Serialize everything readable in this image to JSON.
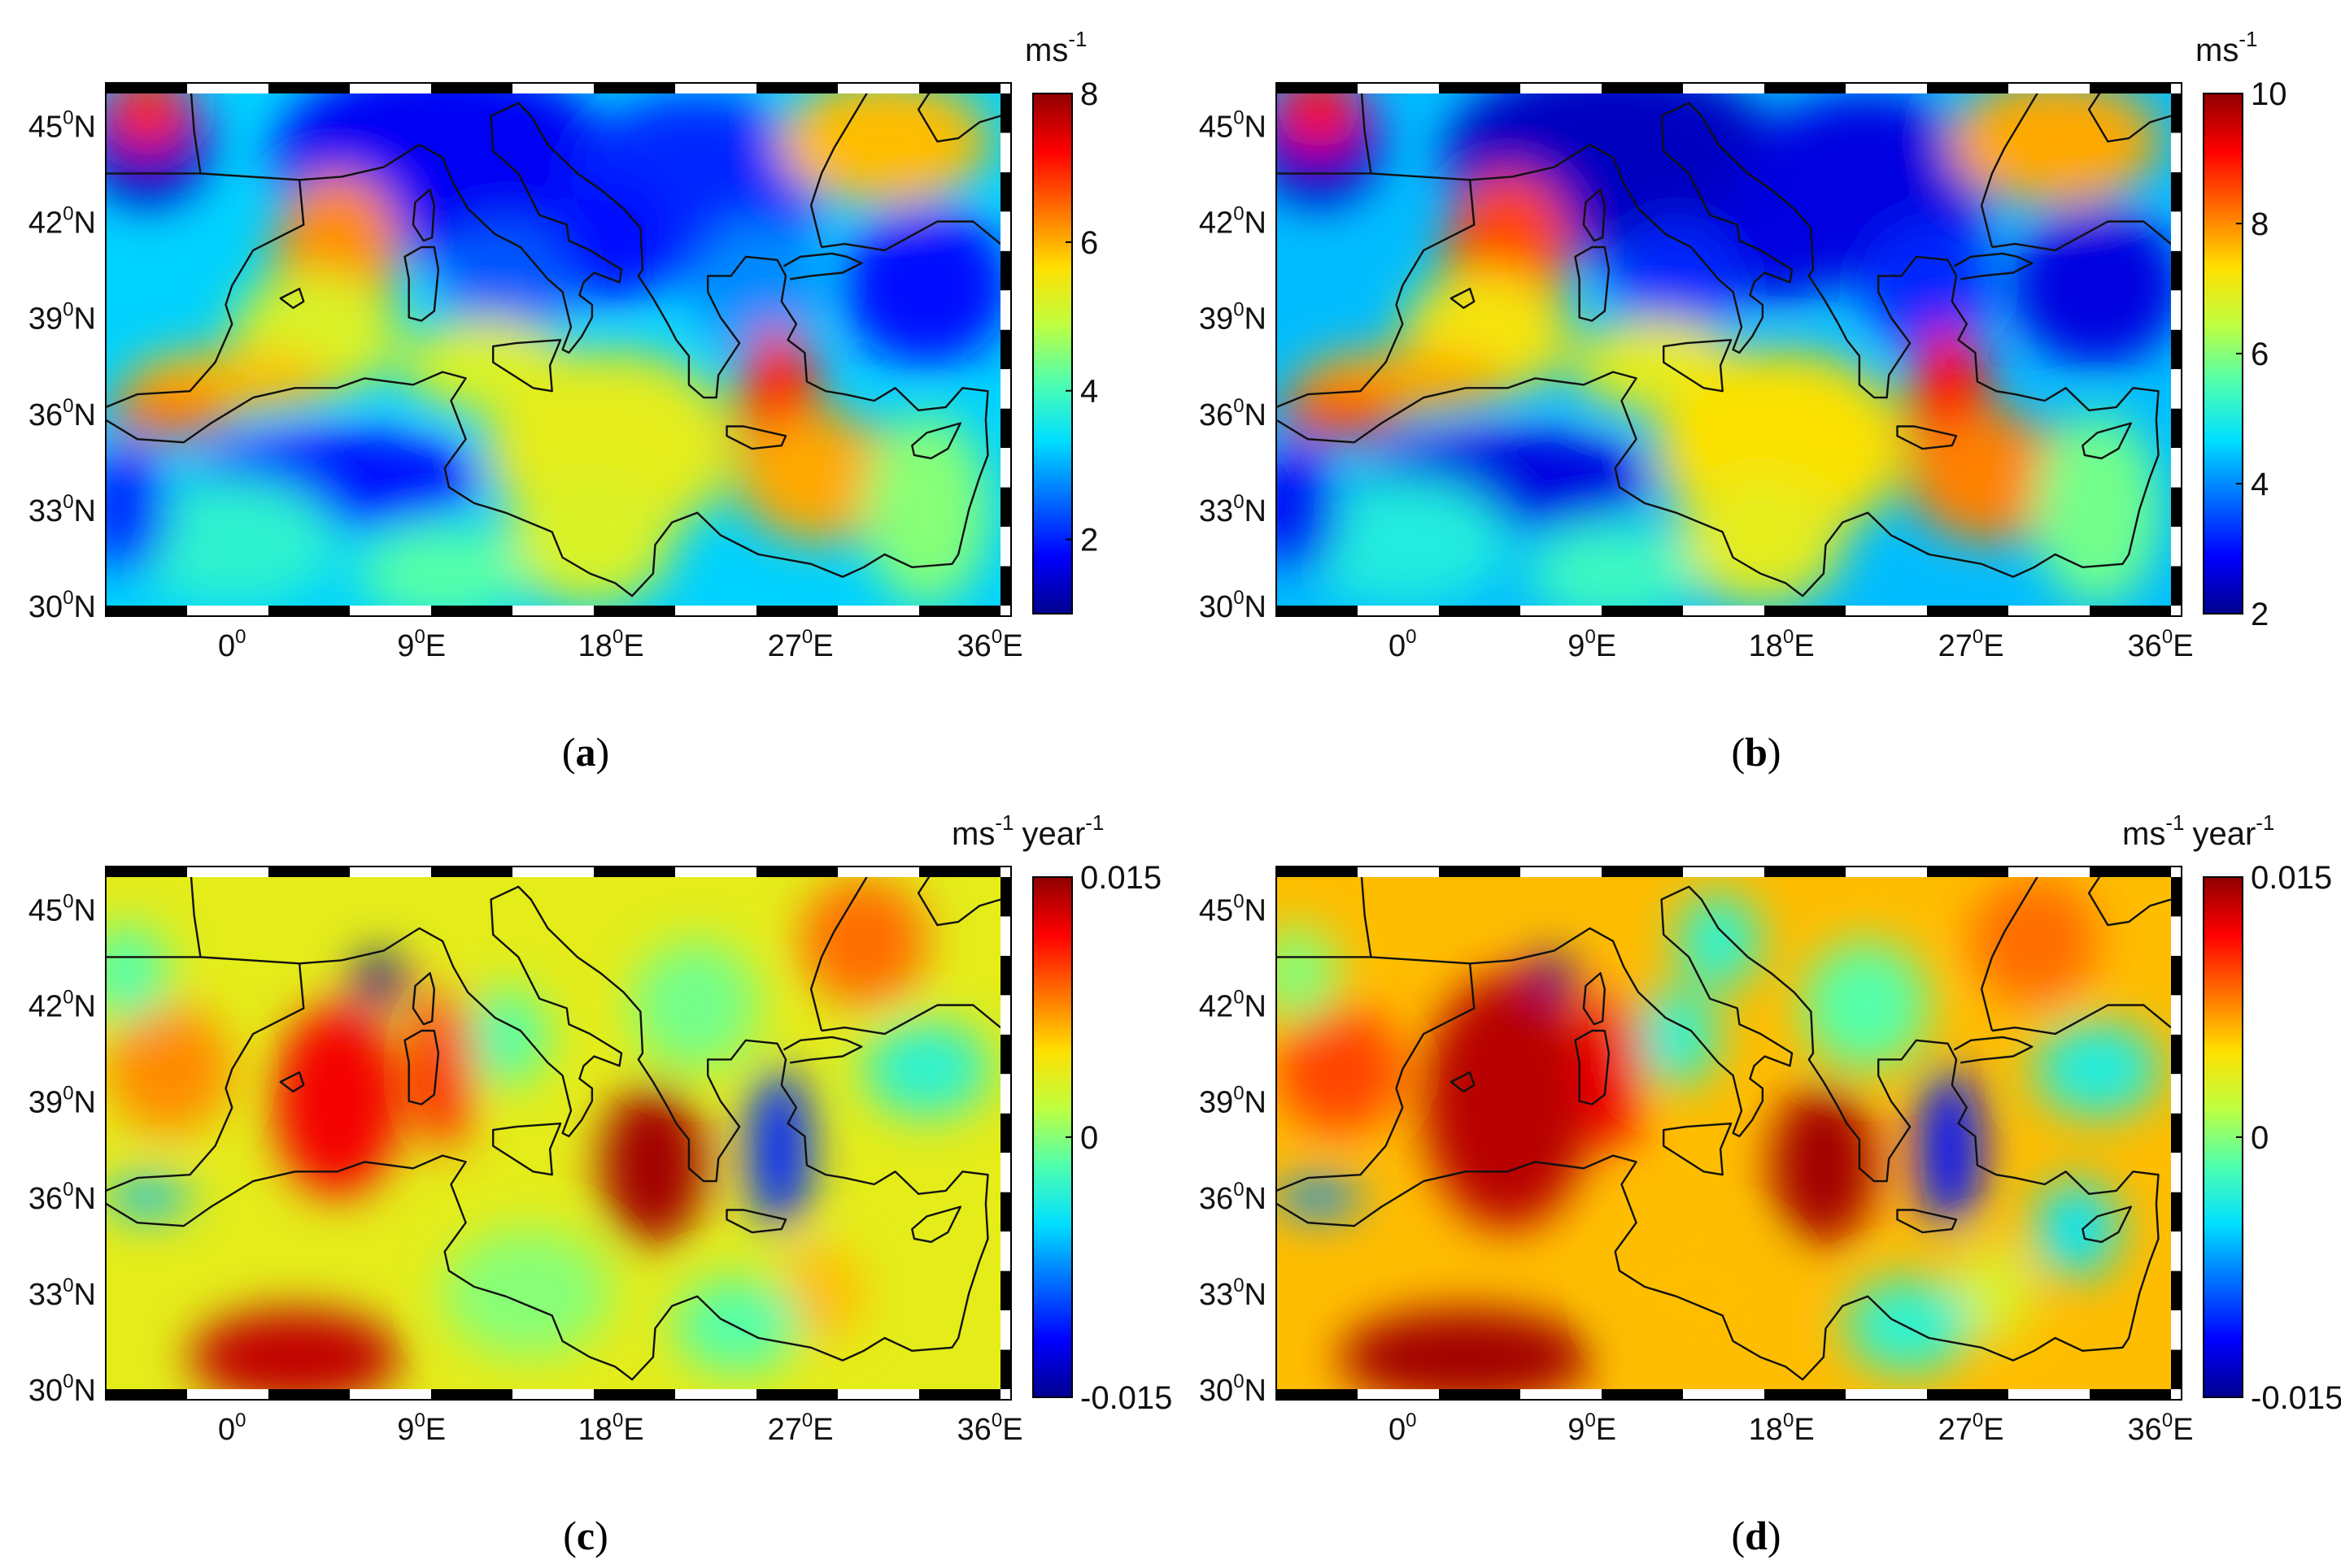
{
  "panels": [
    {
      "id": "a",
      "label": "a",
      "unit": "ms",
      "unit_exp": "-1",
      "unit2": "",
      "unit2_exp": "",
      "colorbar": {
        "min": 1,
        "max": 8,
        "ticks": [
          "8",
          "6",
          "4",
          "2"
        ],
        "tick_values": [
          8,
          6,
          4,
          2
        ]
      },
      "lat_ticks": [
        {
          "deg": "45",
          "hem": "N"
        },
        {
          "deg": "42",
          "hem": "N"
        },
        {
          "deg": "39",
          "hem": "N"
        },
        {
          "deg": "36",
          "hem": "N"
        },
        {
          "deg": "33",
          "hem": "N"
        },
        {
          "deg": "30",
          "hem": "N"
        }
      ],
      "lon_ticks": [
        {
          "deg": "0",
          "hem": ""
        },
        {
          "deg": "9",
          "hem": "E"
        },
        {
          "deg": "18",
          "hem": "E"
        },
        {
          "deg": "27",
          "hem": "E"
        },
        {
          "deg": "36",
          "hem": "E"
        }
      ]
    },
    {
      "id": "b",
      "label": "b",
      "unit": "ms",
      "unit_exp": "-1",
      "unit2": "",
      "unit2_exp": "",
      "colorbar": {
        "min": 2,
        "max": 10,
        "ticks": [
          "10",
          "8",
          "6",
          "4",
          "2"
        ],
        "tick_values": [
          10,
          8,
          6,
          4,
          2
        ]
      },
      "lat_ticks": [
        {
          "deg": "45",
          "hem": "N"
        },
        {
          "deg": "42",
          "hem": "N"
        },
        {
          "deg": "39",
          "hem": "N"
        },
        {
          "deg": "36",
          "hem": "N"
        },
        {
          "deg": "33",
          "hem": "N"
        },
        {
          "deg": "30",
          "hem": "N"
        }
      ],
      "lon_ticks": [
        {
          "deg": "0",
          "hem": ""
        },
        {
          "deg": "9",
          "hem": "E"
        },
        {
          "deg": "18",
          "hem": "E"
        },
        {
          "deg": "27",
          "hem": "E"
        },
        {
          "deg": "36",
          "hem": "E"
        }
      ]
    },
    {
      "id": "c",
      "label": "c",
      "unit": "ms",
      "unit_exp": "-1",
      "unit2": "year",
      "unit2_exp": "-1",
      "colorbar": {
        "min": -0.015,
        "max": 0.015,
        "ticks": [
          "0.015",
          "0",
          "-0.015"
        ],
        "tick_values": [
          0.015,
          0,
          -0.015
        ]
      },
      "lat_ticks": [
        {
          "deg": "45",
          "hem": "N"
        },
        {
          "deg": "42",
          "hem": "N"
        },
        {
          "deg": "39",
          "hem": "N"
        },
        {
          "deg": "36",
          "hem": "N"
        },
        {
          "deg": "33",
          "hem": "N"
        },
        {
          "deg": "30",
          "hem": "N"
        }
      ],
      "lon_ticks": [
        {
          "deg": "0",
          "hem": ""
        },
        {
          "deg": "9",
          "hem": "E"
        },
        {
          "deg": "18",
          "hem": "E"
        },
        {
          "deg": "27",
          "hem": "E"
        },
        {
          "deg": "36",
          "hem": "E"
        }
      ]
    },
    {
      "id": "d",
      "label": "d",
      "unit": "ms",
      "unit_exp": "-1",
      "unit2": "year",
      "unit2_exp": "-1",
      "colorbar": {
        "min": -0.015,
        "max": 0.015,
        "ticks": [
          "0.015",
          "0",
          "-0.015"
        ],
        "tick_values": [
          0.015,
          0,
          -0.015
        ]
      },
      "lat_ticks": [
        {
          "deg": "45",
          "hem": "N"
        },
        {
          "deg": "42",
          "hem": "N"
        },
        {
          "deg": "39",
          "hem": "N"
        },
        {
          "deg": "36",
          "hem": "N"
        },
        {
          "deg": "33",
          "hem": "N"
        },
        {
          "deg": "30",
          "hem": "N"
        }
      ],
      "lon_ticks": [
        {
          "deg": "0",
          "hem": ""
        },
        {
          "deg": "9",
          "hem": "E"
        },
        {
          "deg": "18",
          "hem": "E"
        },
        {
          "deg": "27",
          "hem": "E"
        },
        {
          "deg": "36",
          "hem": "E"
        }
      ]
    }
  ],
  "map_extent": {
    "lon": [
      -6,
      36.5
    ],
    "lat": [
      30,
      46
    ]
  },
  "colormap": "jet",
  "colors": {
    "sea_low": "#1a3fd6",
    "sea_mid": "#f5e93a",
    "sea_high": "#a50f0f",
    "coast": "#111111"
  }
}
